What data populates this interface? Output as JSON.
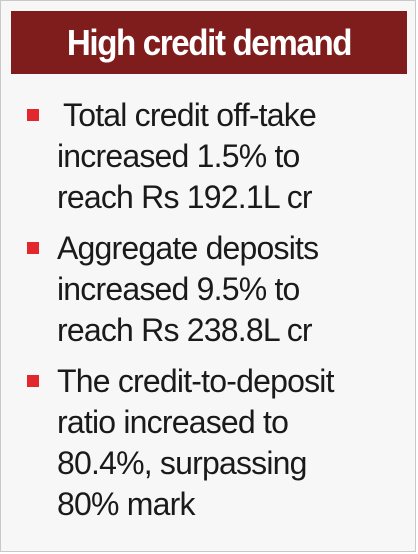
{
  "header": {
    "title": "High credit demand",
    "background_color": "#7f1d1d"
  },
  "bullet_color": "#e2282c",
  "items": [
    {
      "lines": [
        "Total credit off-take",
        "increased 1.5% to",
        "reach Rs 192.1L cr"
      ]
    },
    {
      "lines": [
        "Aggregate deposits",
        "increased 9.5% to",
        "reach Rs 238.8L cr"
      ]
    },
    {
      "lines": [
        "The credit-to-deposit",
        "ratio increased to",
        "80.4%, surpassing",
        "80% mark"
      ]
    }
  ]
}
